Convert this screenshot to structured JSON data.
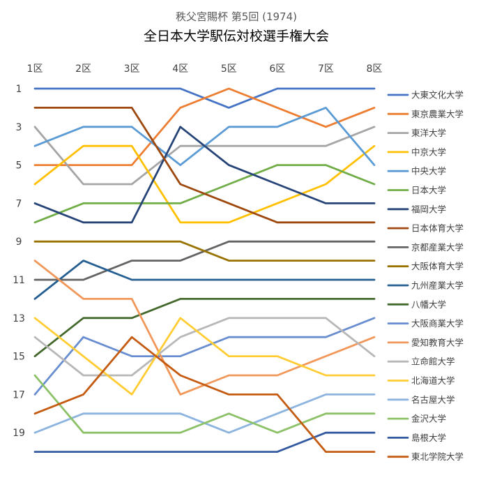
{
  "chart_data": {
    "type": "line",
    "title": "秩父宮賜杯 第5回 (1974)",
    "subtitle": "全日本大学駅伝対校選手権大会",
    "x": [
      "1区",
      "2区",
      "3区",
      "4区",
      "5区",
      "6区",
      "7区",
      "8区"
    ],
    "y_ticks": [
      "1",
      "3",
      "5",
      "7",
      "9",
      "11",
      "13",
      "15",
      "17",
      "19"
    ],
    "ylim": [
      1,
      20
    ],
    "y_reversed": true,
    "legend_position": "right",
    "series": [
      {
        "name": "大東文化大学",
        "color": "#4472C4",
        "values": [
          1,
          1,
          1,
          1,
          2,
          1,
          1,
          1
        ]
      },
      {
        "name": "東京農業大学",
        "color": "#ED7D31",
        "values": [
          5,
          5,
          5,
          2,
          1,
          2,
          3,
          2
        ]
      },
      {
        "name": "東洋大学",
        "color": "#A5A5A5",
        "values": [
          3,
          6,
          6,
          4,
          4,
          4,
          4,
          3
        ]
      },
      {
        "name": "中京大学",
        "color": "#FFC000",
        "values": [
          6,
          4,
          4,
          8,
          8,
          7,
          6,
          4
        ]
      },
      {
        "name": "中央大学",
        "color": "#5B9BD5",
        "values": [
          4,
          3,
          3,
          5,
          3,
          3,
          2,
          5
        ]
      },
      {
        "name": "日本大学",
        "color": "#70AD47",
        "values": [
          8,
          7,
          7,
          7,
          6,
          5,
          5,
          6
        ]
      },
      {
        "name": "福岡大学",
        "color": "#264478",
        "values": [
          7,
          8,
          8,
          3,
          5,
          6,
          7,
          7
        ]
      },
      {
        "name": "日本体育大学",
        "color": "#9E480E",
        "values": [
          2,
          2,
          2,
          6,
          7,
          8,
          8,
          8
        ]
      },
      {
        "name": "京都産業大学",
        "color": "#636363",
        "values": [
          11,
          11,
          10,
          10,
          9,
          9,
          9,
          9
        ]
      },
      {
        "name": "大阪体育大学",
        "color": "#997300",
        "values": [
          9,
          9,
          9,
          9,
          10,
          10,
          10,
          10
        ]
      },
      {
        "name": "九州産業大学",
        "color": "#255E91",
        "values": [
          12,
          10,
          11,
          11,
          11,
          11,
          11,
          11
        ]
      },
      {
        "name": "八幡大学",
        "color": "#43682B",
        "values": [
          15,
          13,
          13,
          12,
          12,
          12,
          12,
          12
        ]
      },
      {
        "name": "大阪商業大学",
        "color": "#698ED0",
        "values": [
          17,
          14,
          15,
          15,
          14,
          14,
          14,
          13
        ]
      },
      {
        "name": "愛知教育大学",
        "color": "#F1975A",
        "values": [
          10,
          12,
          12,
          17,
          16,
          16,
          15,
          14
        ]
      },
      {
        "name": "立命館大学",
        "color": "#B7B7B7",
        "values": [
          14,
          16,
          16,
          14,
          13,
          13,
          13,
          15
        ]
      },
      {
        "name": "北海道大学",
        "color": "#FFCD33",
        "values": [
          13,
          15,
          17,
          13,
          15,
          15,
          16,
          16
        ]
      },
      {
        "name": "名古屋大学",
        "color": "#8CB4DF",
        "values": [
          19,
          18,
          18,
          18,
          19,
          18,
          17,
          17
        ]
      },
      {
        "name": "金沢大学",
        "color": "#8CC168",
        "values": [
          16,
          19,
          19,
          19,
          18,
          19,
          18,
          18
        ]
      },
      {
        "name": "島根大学",
        "color": "#335AA1",
        "values": [
          20,
          20,
          20,
          20,
          20,
          20,
          19,
          19
        ]
      },
      {
        "name": "東北学院大学",
        "color": "#C55A11",
        "values": [
          18,
          17,
          14,
          16,
          17,
          17,
          20,
          20
        ]
      }
    ]
  }
}
